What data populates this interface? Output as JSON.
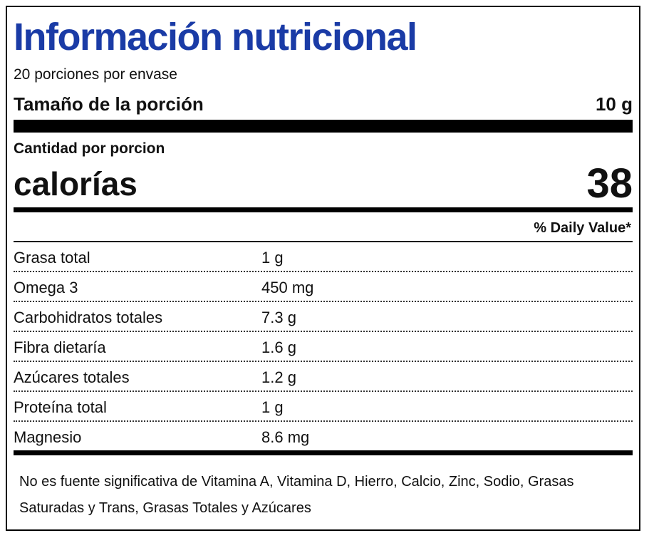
{
  "title": "Información nutricional",
  "servings_per_container": "20 porciones por envase",
  "serving_size": {
    "label": "Tamaño de la porción",
    "value": "10 g"
  },
  "amount_per_serving": "Cantidad por porcion",
  "calories": {
    "label": "calorías",
    "value": "38"
  },
  "daily_value_header": "% Daily Value*",
  "nutrients": [
    {
      "name": "Grasa total",
      "amount": "1 g"
    },
    {
      "name": "Omega 3",
      "amount": "450 mg"
    },
    {
      "name": "Carbohidratos totales",
      "amount": "7.3 g"
    },
    {
      "name": "Fibra dietaría",
      "amount": "1.6 g"
    },
    {
      "name": "Azúcares totales",
      "amount": "1.2 g"
    },
    {
      "name": "Proteína total",
      "amount": "1 g"
    },
    {
      "name": "Magnesio",
      "amount": "8.6 mg"
    }
  ],
  "footnote": "No es fuente significativa de Vitamina A, Vitamina D, Hierro, Calcio, Zinc, Sodio, Grasas Saturadas y Trans, Grasas Totales y Azúcares",
  "colors": {
    "title": "#1a3ba6",
    "rules": "#000000"
  }
}
